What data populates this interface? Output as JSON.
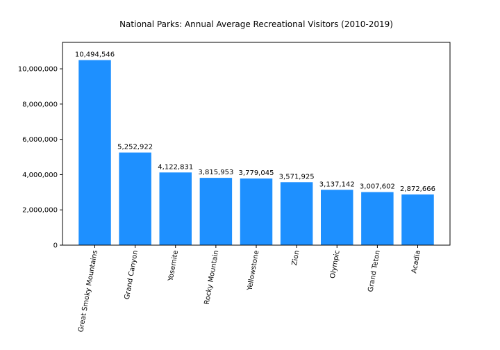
{
  "chart_data": {
    "type": "bar",
    "title": "National Parks: Annual Average Recreational Visitors (2010-2019)",
    "xlabel": "",
    "ylabel": "",
    "categories": [
      "Great Smoky Mountains",
      "Grand Canyon",
      "Yosemite",
      "Rocky Mountain",
      "Yellowstone",
      "Zion",
      "Olympic",
      "Grand Teton",
      "Acadia"
    ],
    "values": [
      10494546,
      5252922,
      4122831,
      3815953,
      3779045,
      3571925,
      3137142,
      3007602,
      2872666
    ],
    "value_labels": [
      "10,494,546",
      "5,252,922",
      "4,122,831",
      "3,815,953",
      "3,779,045",
      "3,571,925",
      "3,137,142",
      "3,007,602",
      "2,872,666"
    ],
    "ylim": [
      0,
      11500000
    ],
    "yticks": [
      0,
      2000000,
      4000000,
      6000000,
      8000000,
      10000000
    ],
    "ytick_labels": [
      "0",
      "2,000,000",
      "4,000,000",
      "6,000,000",
      "8,000,000",
      "10,000,000"
    ],
    "bar_color": "#1e90ff",
    "grid": false,
    "legend": "none"
  }
}
